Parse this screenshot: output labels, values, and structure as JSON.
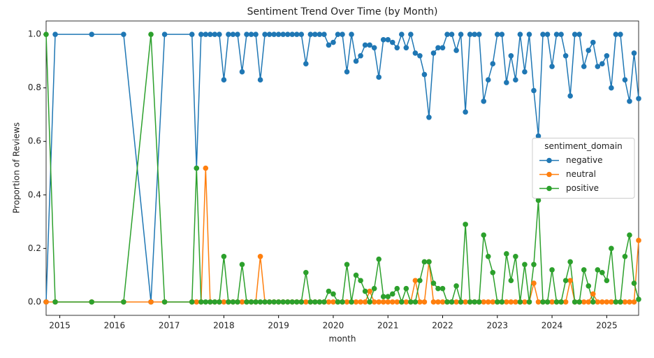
{
  "chart_data": {
    "type": "line",
    "title": "Sentiment Trend Over Time (by Month)",
    "x_label": "month",
    "y_label": "Proportion of Reviews",
    "legend_title": "sentiment_domain",
    "legend_position": "center right",
    "x": [
      "2014-10",
      "2014-12",
      "2015-08",
      "2016-03",
      "2016-09",
      "2016-12",
      "2017-06",
      "2017-07",
      "2017-08",
      "2017-09",
      "2017-10",
      "2017-11",
      "2017-12",
      "2018-01",
      "2018-02",
      "2018-03",
      "2018-04",
      "2018-05",
      "2018-06",
      "2018-07",
      "2018-08",
      "2018-09",
      "2018-10",
      "2018-11",
      "2018-12",
      "2019-01",
      "2019-02",
      "2019-03",
      "2019-04",
      "2019-05",
      "2019-06",
      "2019-07",
      "2019-08",
      "2019-09",
      "2019-10",
      "2019-11",
      "2019-12",
      "2020-01",
      "2020-02",
      "2020-03",
      "2020-04",
      "2020-05",
      "2020-06",
      "2020-07",
      "2020-08",
      "2020-09",
      "2020-10",
      "2020-11",
      "2020-12",
      "2021-01",
      "2021-02",
      "2021-03",
      "2021-04",
      "2021-05",
      "2021-06",
      "2021-07",
      "2021-08",
      "2021-09",
      "2021-10",
      "2021-11",
      "2021-12",
      "2022-01",
      "2022-02",
      "2022-03",
      "2022-04",
      "2022-05",
      "2022-06",
      "2022-07",
      "2022-08",
      "2022-09",
      "2022-10",
      "2022-11",
      "2022-12",
      "2023-01",
      "2023-02",
      "2023-03",
      "2023-04",
      "2023-05",
      "2023-06",
      "2023-07",
      "2023-08",
      "2023-09",
      "2023-10",
      "2023-11",
      "2023-12",
      "2024-01",
      "2024-02",
      "2024-03",
      "2024-04",
      "2024-05",
      "2024-06",
      "2024-07",
      "2024-08",
      "2024-09",
      "2024-10",
      "2024-11",
      "2024-12",
      "2025-01",
      "2025-02",
      "2025-03",
      "2025-04",
      "2025-05",
      "2025-06",
      "2025-07",
      "2025-08"
    ],
    "series": [
      {
        "name": "negative",
        "color": "#1f77b4",
        "values": [
          0,
          1,
          1,
          1,
          0,
          1,
          1,
          0.5,
          1,
          1,
          1,
          1,
          1,
          0.83,
          1,
          1,
          1,
          0.86,
          1,
          1,
          1,
          0.83,
          1,
          1,
          1,
          1,
          1,
          1,
          1,
          1,
          1,
          0.89,
          1,
          1,
          1,
          1,
          0.96,
          0.97,
          1,
          1,
          0.86,
          1,
          0.9,
          0.92,
          0.96,
          0.96,
          0.95,
          0.84,
          0.98,
          0.98,
          0.97,
          0.95,
          1,
          0.95,
          1,
          0.93,
          0.92,
          0.85,
          0.69,
          0.93,
          0.95,
          0.95,
          1,
          1,
          0.94,
          1,
          0.71,
          1,
          1,
          1,
          0.75,
          0.83,
          0.89,
          1,
          1,
          0.82,
          0.92,
          0.83,
          1,
          0.86,
          1,
          0.79,
          0.62,
          1,
          1,
          0.88,
          1,
          1,
          0.92,
          0.77,
          1,
          1,
          0.88,
          0.94,
          0.97,
          0.88,
          0.89,
          0.92,
          0.8,
          1,
          1,
          0.83,
          0.75,
          0.93,
          0.76
        ]
      },
      {
        "name": "neutral",
        "color": "#ff7f0e",
        "values": [
          0,
          0,
          0,
          0,
          0,
          0,
          0,
          0,
          0,
          0.5,
          0,
          0,
          0,
          0,
          0,
          0,
          0,
          0,
          0,
          0,
          0,
          0.17,
          0,
          0,
          0,
          0,
          0,
          0,
          0,
          0,
          0,
          0,
          0,
          0,
          0,
          0,
          0,
          0,
          0,
          0,
          0,
          0,
          0,
          0,
          0,
          0.04,
          0,
          0,
          0,
          0,
          0,
          0,
          0,
          0,
          0,
          0.08,
          0,
          0,
          0.15,
          0,
          0,
          0,
          0,
          0,
          0,
          0,
          0,
          0,
          0,
          0,
          0,
          0,
          0,
          0,
          0,
          0,
          0,
          0,
          0,
          0,
          0,
          0.07,
          0,
          0,
          0,
          0,
          0,
          0,
          0,
          0.08,
          0,
          0,
          0,
          0,
          0.03,
          0,
          0,
          0,
          0,
          0,
          0,
          0,
          0,
          0,
          0.23
        ]
      },
      {
        "name": "positive",
        "color": "#2ca02c",
        "values": [
          1,
          0,
          0,
          0,
          1,
          0,
          0,
          0.5,
          0,
          0,
          0,
          0,
          0,
          0.17,
          0,
          0,
          0,
          0.14,
          0,
          0,
          0,
          0,
          0,
          0,
          0,
          0,
          0,
          0,
          0,
          0,
          0,
          0.11,
          0,
          0,
          0,
          0,
          0.04,
          0.03,
          0,
          0,
          0.14,
          0,
          0.1,
          0.08,
          0.04,
          0,
          0.05,
          0.16,
          0.02,
          0.02,
          0.03,
          0.05,
          0,
          0.05,
          0,
          0,
          0.08,
          0.15,
          0.15,
          0.07,
          0.05,
          0.05,
          0,
          0,
          0.06,
          0,
          0.29,
          0,
          0,
          0,
          0.25,
          0.17,
          0.11,
          0,
          0,
          0.18,
          0.08,
          0.17,
          0,
          0.14,
          0,
          0.14,
          0.38,
          0,
          0,
          0.12,
          0,
          0,
          0.08,
          0.15,
          0,
          0,
          0.12,
          0.06,
          0,
          0.12,
          0.11,
          0.08,
          0.2,
          0,
          0,
          0.17,
          0.25,
          0.07,
          0.01
        ]
      }
    ],
    "xlim": [
      "2014-10",
      "2025-08"
    ],
    "xticks": [
      {
        "value": "2015-01",
        "label": "2015"
      },
      {
        "value": "2016-01",
        "label": "2016"
      },
      {
        "value": "2017-01",
        "label": "2017"
      },
      {
        "value": "2018-01",
        "label": "2018"
      },
      {
        "value": "2019-01",
        "label": "2019"
      },
      {
        "value": "2020-01",
        "label": "2020"
      },
      {
        "value": "2021-01",
        "label": "2021"
      },
      {
        "value": "2022-01",
        "label": "2022"
      },
      {
        "value": "2023-01",
        "label": "2023"
      },
      {
        "value": "2024-01",
        "label": "2024"
      },
      {
        "value": "2025-01",
        "label": "2025"
      }
    ],
    "ylim": [
      -0.05,
      1.05
    ],
    "yticks": [
      {
        "value": 0,
        "label": "0.0"
      },
      {
        "value": 0.2,
        "label": "0.2"
      },
      {
        "value": 0.4,
        "label": "0.4"
      },
      {
        "value": 0.6,
        "label": "0.6"
      },
      {
        "value": 0.8,
        "label": "0.8"
      },
      {
        "value": 1,
        "label": "1.0"
      }
    ],
    "grid": false
  }
}
